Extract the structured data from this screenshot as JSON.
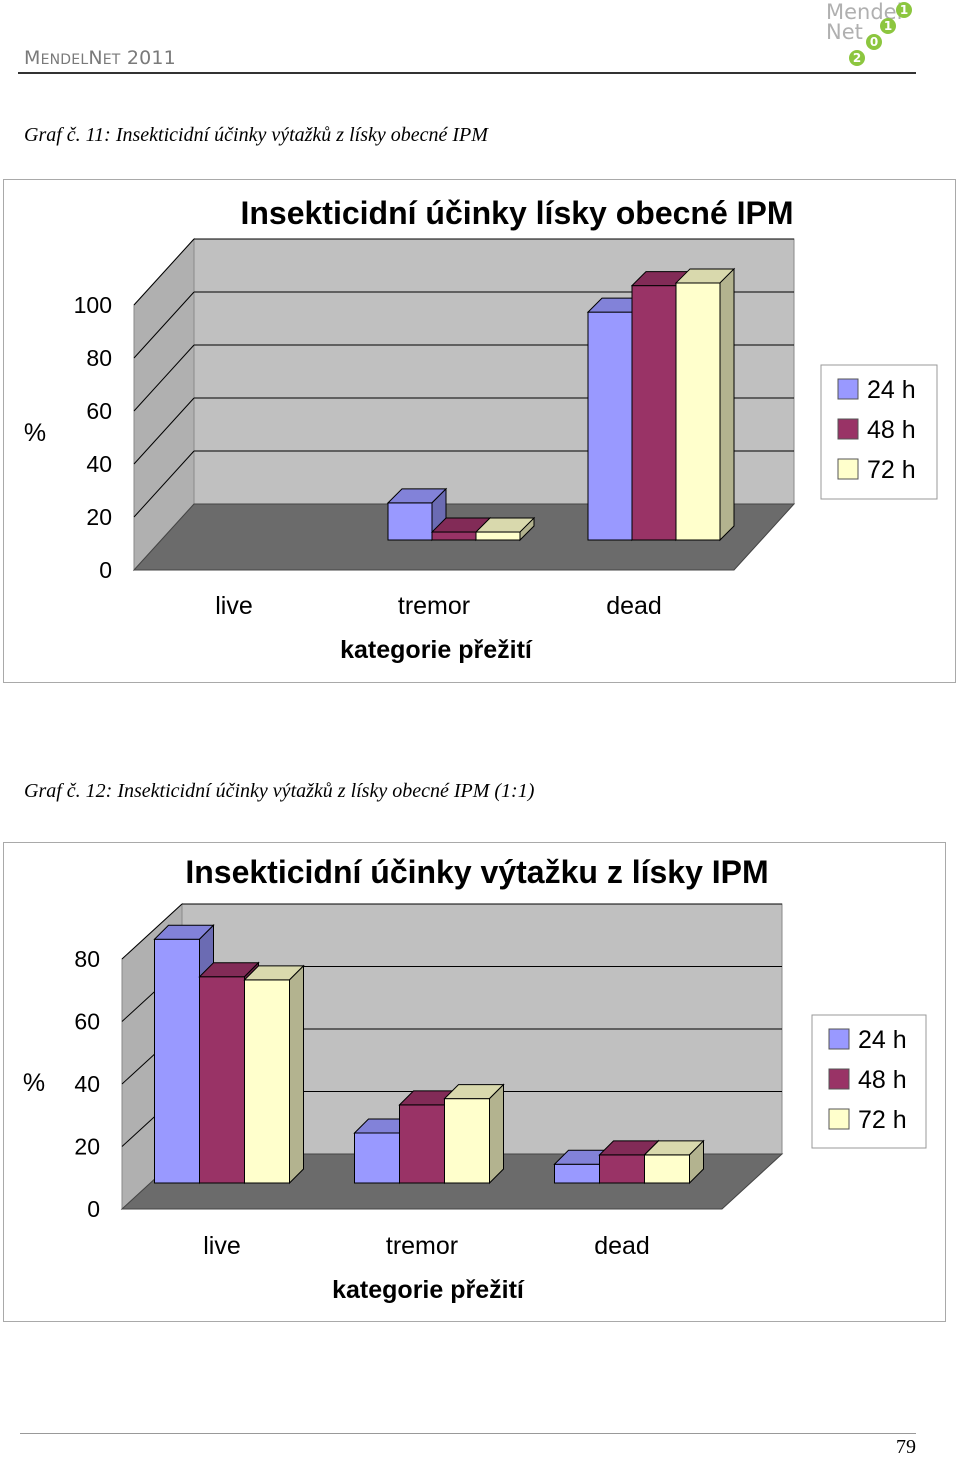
{
  "header": {
    "brand_cap1": "M",
    "brand_rest1": "ENDEL",
    "brand_cap2": "N",
    "brand_rest2": "ET",
    "brand_year": " 2011",
    "logo_word1": "Mendel",
    "logo_word2": "Net",
    "logo_digits": [
      "1",
      "1",
      "0",
      "2"
    ],
    "logo_color": "#8cc63f"
  },
  "figure1": {
    "caption": "Graf č. 11: Insekticidní účinky výtažků z lísky obecné IPM"
  },
  "figure2": {
    "caption": "Graf č. 12: Insekticidní účinky výtažků z lísky obecné IPM (1:1)"
  },
  "page_number": "79",
  "colors": {
    "series_24h": "#9999ff",
    "series_48h": "#993366",
    "series_72h": "#ffffcc",
    "wall": "#c0c0c0",
    "floor": "#6b6b6b"
  },
  "chart_data": [
    {
      "type": "bar",
      "title": "Insekticidní účinky lísky obecné IPM",
      "xlabel": "kategorie přežití",
      "ylabel": "%",
      "categories": [
        "live",
        "tremor",
        "dead"
      ],
      "yticks": [
        "0",
        "20",
        "40",
        "60",
        "80",
        "100"
      ],
      "ylim": [
        0,
        100
      ],
      "legend_position": "right",
      "series": [
        {
          "name": "24 h",
          "values": [
            0,
            14,
            86
          ]
        },
        {
          "name": "48 h",
          "values": [
            0,
            3,
            96
          ]
        },
        {
          "name": "72 h",
          "values": [
            0,
            3,
            97
          ]
        }
      ]
    },
    {
      "type": "bar",
      "title": "Insekticidní účinky výtažku z lísky IPM",
      "xlabel": "kategorie přežití",
      "ylabel": "%",
      "categories": [
        "live",
        "tremor",
        "dead"
      ],
      "yticks": [
        "0",
        "20",
        "40",
        "60",
        "80"
      ],
      "ylim": [
        0,
        80
      ],
      "legend_position": "right",
      "series": [
        {
          "name": "24 h",
          "values": [
            78,
            16,
            6
          ]
        },
        {
          "name": "48 h",
          "values": [
            66,
            25,
            9
          ]
        },
        {
          "name": "72 h",
          "values": [
            65,
            27,
            9
          ]
        }
      ]
    }
  ]
}
